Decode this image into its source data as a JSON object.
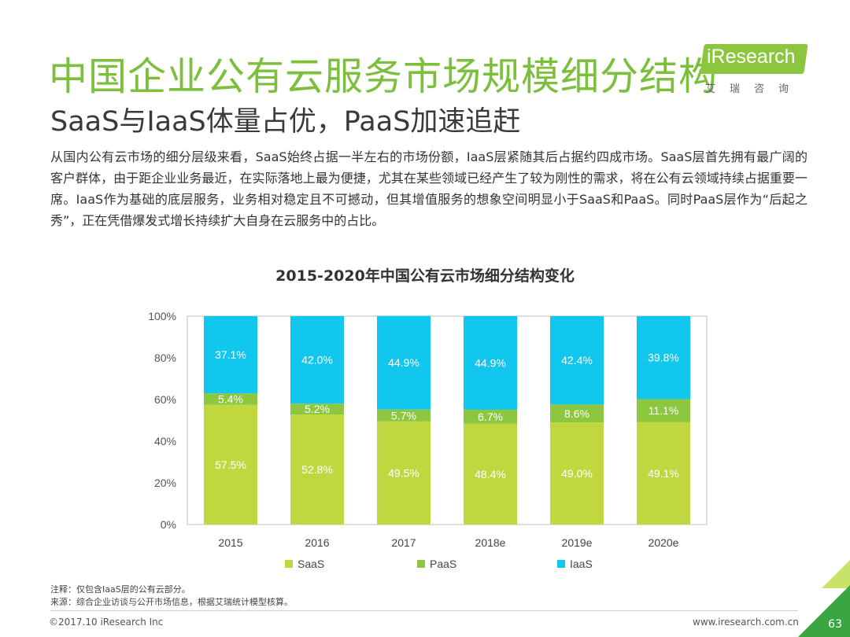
{
  "header": {
    "title": "中国企业公有云服务市场规模细分结构",
    "subtitle": "SaaS与IaaS体量占优，PaaS加速追赶"
  },
  "logo": {
    "text": "iResearch",
    "cn": "艾瑞咨询"
  },
  "body": {
    "paragraph": "从国内公有云市场的细分层级来看，SaaS始终占据一半左右的市场份额，IaaS层紧随其后占据约四成市场。SaaS层首先拥有最广阔的客户群体，由于距企业业务最近，在实际落地上最为便捷，尤其在某些领域已经产生了较为刚性的需求，将在公有云领域持续占据重要一席。IaaS作为基础的底层服务，业务相对稳定且不可撼动，但其增值服务的想象空间明显小于SaaS和PaaS。同时PaaS层作为“后起之秀”，正在凭借爆发式增长持续扩大自身在云服务中的占比。"
  },
  "chart_data": {
    "type": "bar",
    "stacked": true,
    "title": "2015-2020年中国公有云市场细分结构变化",
    "categories": [
      "2015",
      "2016",
      "2017",
      "2018e",
      "2019e",
      "2020e"
    ],
    "y_ticks": [
      "0%",
      "20%",
      "40%",
      "60%",
      "80%",
      "100%"
    ],
    "ylim": [
      0,
      100
    ],
    "series": [
      {
        "name": "SaaS",
        "color": "#c0d73f",
        "values": [
          57.5,
          52.8,
          49.5,
          48.4,
          49.0,
          49.1
        ],
        "labels": [
          "57.5%",
          "52.8%",
          "49.5%",
          "48.4%",
          "49.0%",
          "49.1%"
        ]
      },
      {
        "name": "PaaS",
        "color": "#8dc63f",
        "values": [
          5.4,
          5.2,
          5.7,
          6.7,
          8.6,
          11.1
        ],
        "labels": [
          "5.4%",
          "5.2%",
          "5.7%",
          "6.7%",
          "8.6%",
          "11.1%"
        ]
      },
      {
        "name": "IaaS",
        "color": "#11c7ee",
        "values": [
          37.1,
          42.0,
          44.9,
          44.9,
          42.4,
          39.8
        ],
        "labels": [
          "37.1%",
          "42.0%",
          "44.9%",
          "44.9%",
          "42.4%",
          "39.8%"
        ]
      }
    ],
    "legend_position": "bottom"
  },
  "notes": {
    "note": "注释：仅包含IaaS层的公有云部分。",
    "source": "来源：综合企业访谈与公开市场信息，根据艾瑞统计模型核算。"
  },
  "footer": {
    "copyright": "©2017.10 iResearch Inc",
    "url": "www.iresearch.com.cn",
    "page": "63"
  }
}
